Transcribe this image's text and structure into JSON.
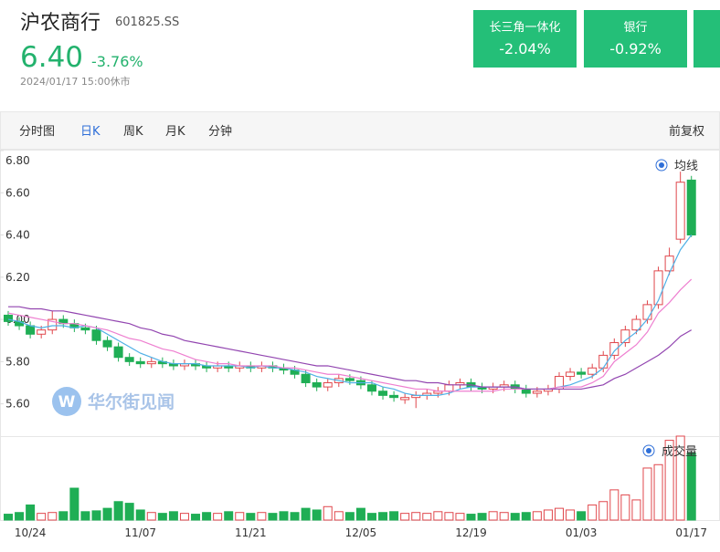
{
  "header": {
    "title": "沪农商行",
    "code": "601825.SS",
    "price": "6.40",
    "change": "-3.76%",
    "time": "2024/01/17 15:00休市"
  },
  "tiles": [
    {
      "name": "长三角一体化",
      "change": "-2.04%"
    },
    {
      "name": "银行",
      "change": "-0.92%"
    }
  ],
  "tabs": [
    "分时图",
    "日K",
    "周K",
    "月K",
    "分钟"
  ],
  "adjust": "前复权",
  "watermark": "华尔街见闻",
  "chart_data": {
    "type": "candlestick",
    "categories": [
      null,
      null,
      "10/24",
      null,
      null,
      null,
      null,
      null,
      null,
      null,
      null,
      null,
      "11/07",
      null,
      null,
      null,
      null,
      null,
      null,
      null,
      null,
      null,
      "11/21",
      null,
      null,
      null,
      null,
      null,
      null,
      null,
      null,
      null,
      "12/05",
      null,
      null,
      null,
      null,
      null,
      null,
      null,
      null,
      null,
      "12/19",
      null,
      null,
      null,
      null,
      null,
      null,
      null,
      null,
      null,
      "01/03",
      null,
      null,
      null,
      null,
      null,
      null,
      null,
      null,
      null,
      "01/17"
    ],
    "open": [
      6.02,
      5.99,
      5.97,
      5.93,
      5.95,
      6.0,
      5.98,
      5.96,
      5.95,
      5.9,
      5.87,
      5.82,
      5.8,
      5.79,
      5.8,
      5.79,
      5.78,
      5.79,
      5.78,
      5.77,
      5.78,
      5.77,
      5.78,
      5.77,
      5.78,
      5.77,
      5.76,
      5.74,
      5.7,
      5.68,
      5.7,
      5.72,
      5.71,
      5.69,
      5.66,
      5.64,
      5.62,
      5.63,
      5.64,
      5.65,
      5.66,
      5.69,
      5.7,
      5.68,
      5.67,
      5.68,
      5.69,
      5.67,
      5.65,
      5.66,
      5.67,
      5.73,
      5.75,
      5.74,
      5.77,
      5.83,
      5.89,
      5.95,
      6.0,
      6.07,
      6.23,
      6.38,
      6.66
    ],
    "high": [
      6.04,
      6.01,
      5.99,
      5.97,
      6.04,
      6.02,
      6.0,
      5.98,
      5.97,
      5.92,
      5.89,
      5.84,
      5.82,
      5.82,
      5.82,
      5.81,
      5.81,
      5.81,
      5.8,
      5.8,
      5.8,
      5.8,
      5.8,
      5.8,
      5.8,
      5.79,
      5.78,
      5.76,
      5.72,
      5.72,
      5.74,
      5.74,
      5.73,
      5.71,
      5.68,
      5.66,
      5.65,
      5.66,
      5.67,
      5.68,
      5.71,
      5.72,
      5.72,
      5.7,
      5.7,
      5.71,
      5.71,
      5.69,
      5.68,
      5.69,
      5.75,
      5.77,
      5.77,
      5.79,
      5.85,
      5.91,
      5.97,
      6.02,
      6.09,
      6.25,
      6.34,
      6.7,
      6.68
    ],
    "low": [
      5.97,
      5.95,
      5.91,
      5.91,
      5.93,
      5.96,
      5.94,
      5.93,
      5.88,
      5.85,
      5.8,
      5.78,
      5.77,
      5.77,
      5.77,
      5.76,
      5.76,
      5.76,
      5.75,
      5.75,
      5.75,
      5.75,
      5.75,
      5.75,
      5.75,
      5.74,
      5.72,
      5.68,
      5.66,
      5.66,
      5.68,
      5.69,
      5.67,
      5.64,
      5.62,
      5.61,
      5.6,
      5.58,
      5.62,
      5.63,
      5.64,
      5.67,
      5.66,
      5.65,
      5.65,
      5.66,
      5.65,
      5.63,
      5.63,
      5.64,
      5.65,
      5.71,
      5.72,
      5.72,
      5.75,
      5.81,
      5.87,
      5.93,
      5.98,
      6.05,
      6.21,
      6.36,
      6.39
    ],
    "close": [
      5.99,
      5.97,
      5.93,
      5.95,
      6.0,
      5.98,
      5.96,
      5.95,
      5.9,
      5.87,
      5.82,
      5.8,
      5.79,
      5.8,
      5.79,
      5.78,
      5.79,
      5.78,
      5.77,
      5.78,
      5.77,
      5.78,
      5.77,
      5.78,
      5.77,
      5.76,
      5.74,
      5.7,
      5.68,
      5.7,
      5.72,
      5.71,
      5.69,
      5.66,
      5.64,
      5.63,
      5.63,
      5.64,
      5.65,
      5.66,
      5.69,
      5.7,
      5.68,
      5.67,
      5.68,
      5.69,
      5.67,
      5.65,
      5.66,
      5.67,
      5.73,
      5.75,
      5.74,
      5.77,
      5.83,
      5.89,
      5.95,
      6.0,
      6.07,
      6.23,
      6.3,
      6.65,
      6.4
    ],
    "volume": [
      7,
      9,
      18,
      8,
      9,
      10,
      38,
      10,
      11,
      14,
      22,
      20,
      12,
      9,
      8,
      10,
      8,
      7,
      9,
      8,
      10,
      9,
      8,
      9,
      8,
      10,
      9,
      14,
      12,
      16,
      10,
      9,
      14,
      8,
      9,
      10,
      8,
      9,
      8,
      10,
      9,
      8,
      7,
      8,
      10,
      9,
      8,
      9,
      10,
      12,
      14,
      12,
      10,
      18,
      22,
      36,
      30,
      24,
      62,
      66,
      95,
      100,
      80
    ],
    "ma_lines": [
      {
        "color": "#4fb0e6",
        "values": [
          6.0,
          5.99,
          5.97,
          5.96,
          5.97,
          5.97,
          5.96,
          5.97,
          5.96,
          5.93,
          5.9,
          5.87,
          5.84,
          5.82,
          5.8,
          5.79,
          5.79,
          5.79,
          5.78,
          5.78,
          5.78,
          5.78,
          5.77,
          5.78,
          5.77,
          5.77,
          5.76,
          5.75,
          5.73,
          5.72,
          5.71,
          5.7,
          5.7,
          5.7,
          5.68,
          5.67,
          5.65,
          5.64,
          5.64,
          5.64,
          5.65,
          5.67,
          5.68,
          5.68,
          5.68,
          5.68,
          5.68,
          5.67,
          5.67,
          5.67,
          5.68,
          5.69,
          5.71,
          5.73,
          5.77,
          5.85,
          5.9,
          5.94,
          6.0,
          6.09,
          6.22,
          6.33,
          6.4
        ]
      },
      {
        "color": "#ee7fd0",
        "values": [
          6.03,
          6.02,
          6.01,
          6.0,
          5.99,
          5.98,
          5.98,
          5.97,
          5.96,
          5.95,
          5.93,
          5.91,
          5.9,
          5.88,
          5.86,
          5.85,
          5.83,
          5.81,
          5.8,
          5.79,
          5.79,
          5.78,
          5.78,
          5.78,
          5.78,
          5.77,
          5.77,
          5.76,
          5.75,
          5.74,
          5.74,
          5.73,
          5.72,
          5.71,
          5.7,
          5.69,
          5.68,
          5.67,
          5.67,
          5.66,
          5.66,
          5.66,
          5.66,
          5.66,
          5.66,
          5.67,
          5.67,
          5.67,
          5.67,
          5.67,
          5.68,
          5.68,
          5.68,
          5.7,
          5.73,
          5.8,
          5.84,
          5.88,
          5.94,
          6.03,
          6.08,
          6.14,
          6.19
        ]
      },
      {
        "color": "#9245b0",
        "values": [
          6.06,
          6.06,
          6.05,
          6.05,
          6.04,
          6.04,
          6.03,
          6.02,
          6.01,
          6.0,
          5.99,
          5.98,
          5.96,
          5.95,
          5.93,
          5.92,
          5.9,
          5.89,
          5.88,
          5.87,
          5.86,
          5.85,
          5.84,
          5.83,
          5.82,
          5.81,
          5.8,
          5.79,
          5.78,
          5.78,
          5.77,
          5.76,
          5.75,
          5.74,
          5.73,
          5.72,
          5.71,
          5.71,
          5.7,
          5.7,
          5.69,
          5.69,
          5.69,
          5.68,
          5.68,
          5.68,
          5.68,
          5.67,
          5.67,
          5.67,
          5.67,
          5.67,
          5.67,
          5.68,
          5.69,
          5.72,
          5.74,
          5.77,
          5.8,
          5.83,
          5.87,
          5.92,
          5.95
        ]
      }
    ],
    "ylim": [
      5.46,
      6.8
    ],
    "yticks": [
      {
        "value": 5.6,
        "label": "5.60"
      },
      {
        "value": 5.8,
        "label": "5.80"
      },
      {
        "value": 6.0,
        "label": "6.00"
      },
      {
        "value": 6.2,
        "label": "6.20"
      },
      {
        "value": 6.4,
        "label": "6.40"
      },
      {
        "value": 6.6,
        "label": "6.60"
      },
      {
        "value": 6.8,
        "label": "6.80"
      }
    ],
    "vlim": [
      0,
      100
    ],
    "up_color": "#e0474c",
    "down_color": "#1fae55",
    "legend": "均线",
    "volume_legend": "成交量"
  }
}
